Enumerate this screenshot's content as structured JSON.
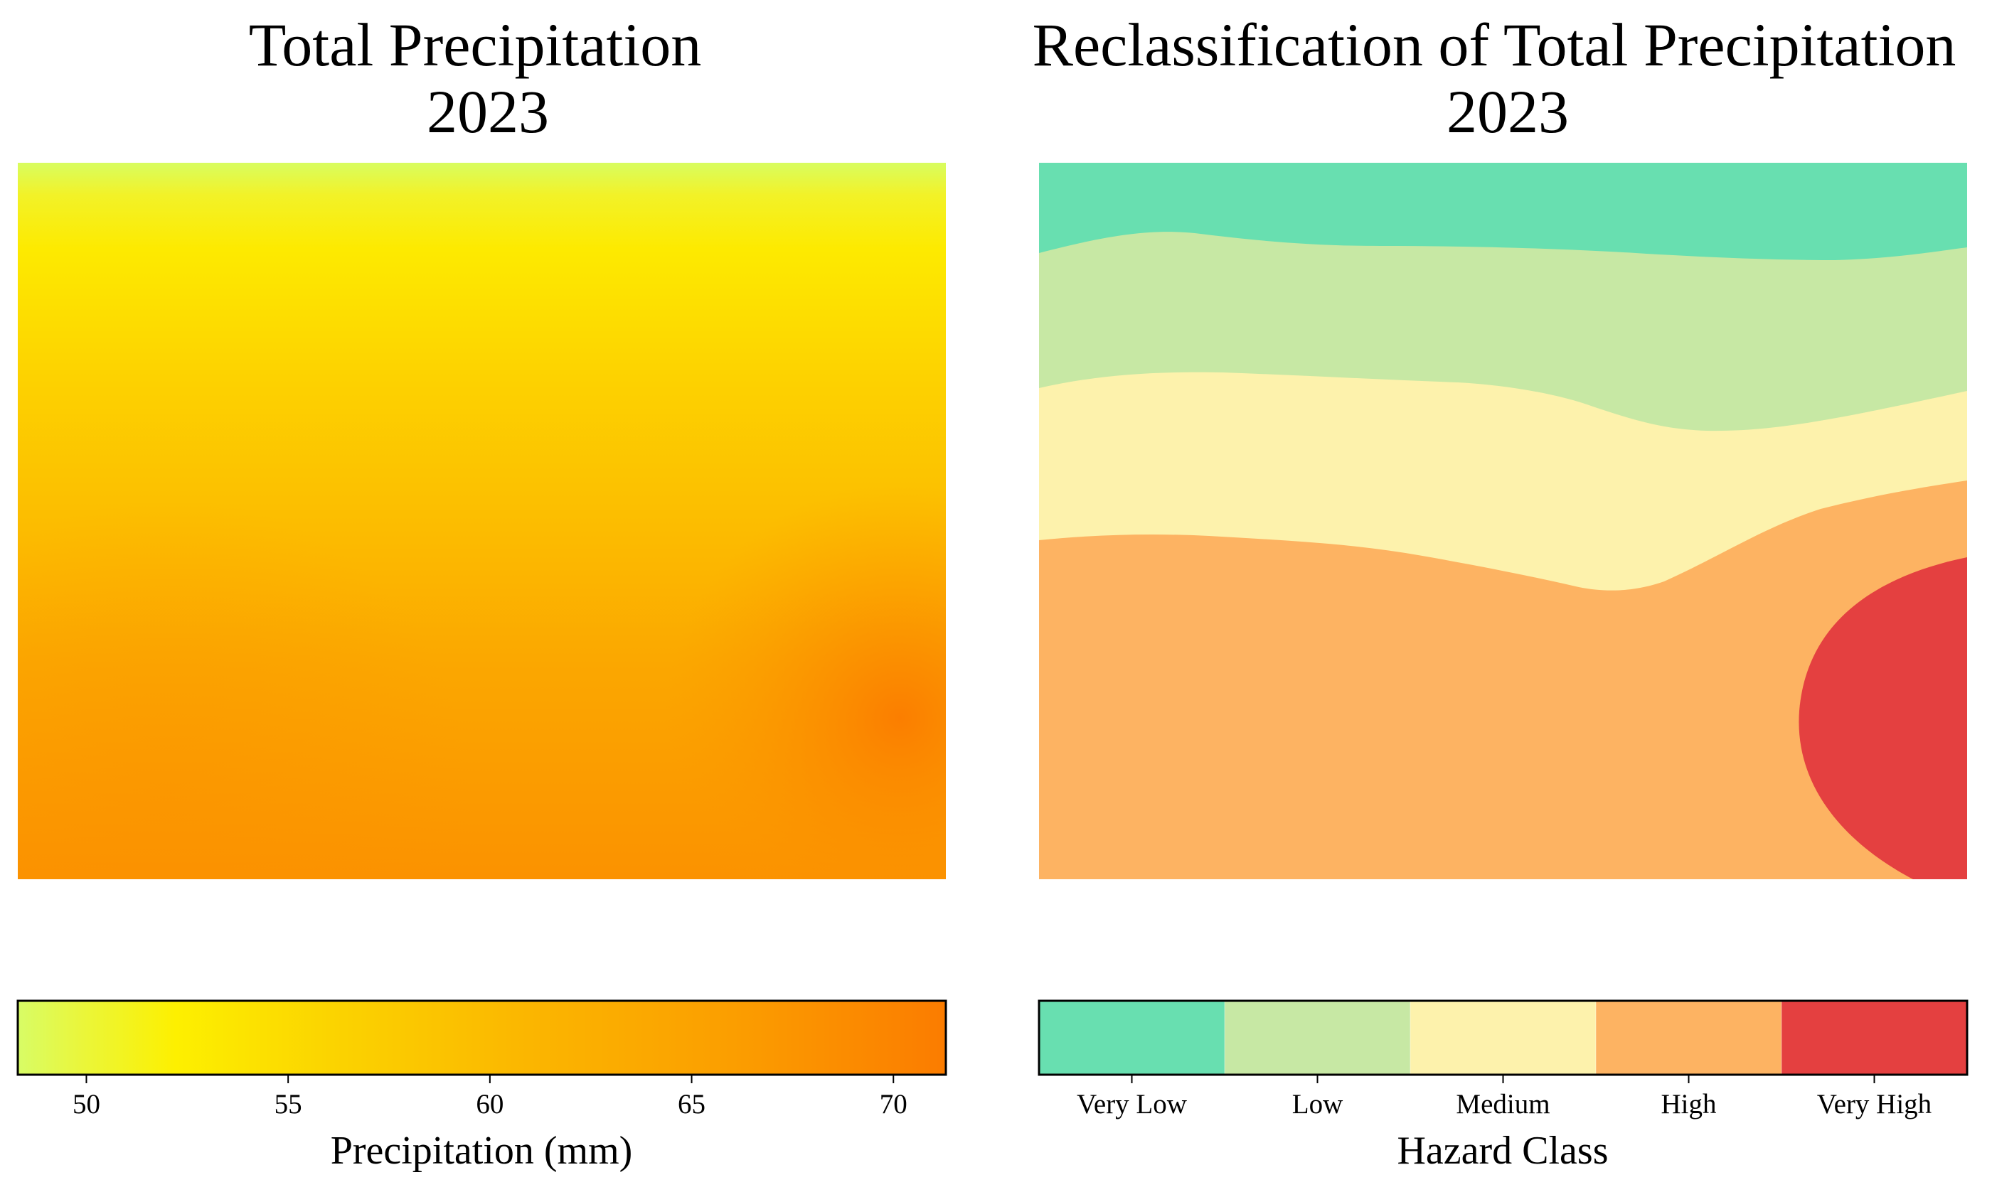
{
  "chart_data": [
    {
      "type": "heatmap",
      "title": "Total Precipitation",
      "subtitle": "2023",
      "colorbar": {
        "label": "Precipitation (mm)",
        "range": [
          48.3,
          71.3
        ],
        "ticks": [
          50,
          55,
          60,
          65,
          70
        ],
        "colormap": [
          {
            "value": 48.3,
            "color": "#d7ff6a"
          },
          {
            "value": 52.2,
            "color": "#fdf000"
          },
          {
            "value": 56.0,
            "color": "#fbd400"
          },
          {
            "value": 61.0,
            "color": "#fbb500"
          },
          {
            "value": 66.0,
            "color": "#fb9e00"
          },
          {
            "value": 71.3,
            "color": "#fb7d00"
          }
        ]
      }
    },
    {
      "type": "heatmap",
      "title": "Reclassification of Total Precipitation",
      "subtitle": "2023",
      "colorbar": {
        "label": "Hazard Class",
        "classes": [
          {
            "name": "Very Low",
            "color": "#68dfb0"
          },
          {
            "name": "Low",
            "color": "#c7e8a4"
          },
          {
            "name": "Medium",
            "color": "#fdf2ac"
          },
          {
            "name": "High",
            "color": "#fdb362"
          },
          {
            "name": "Very High",
            "color": "#e44040"
          }
        ]
      }
    }
  ]
}
